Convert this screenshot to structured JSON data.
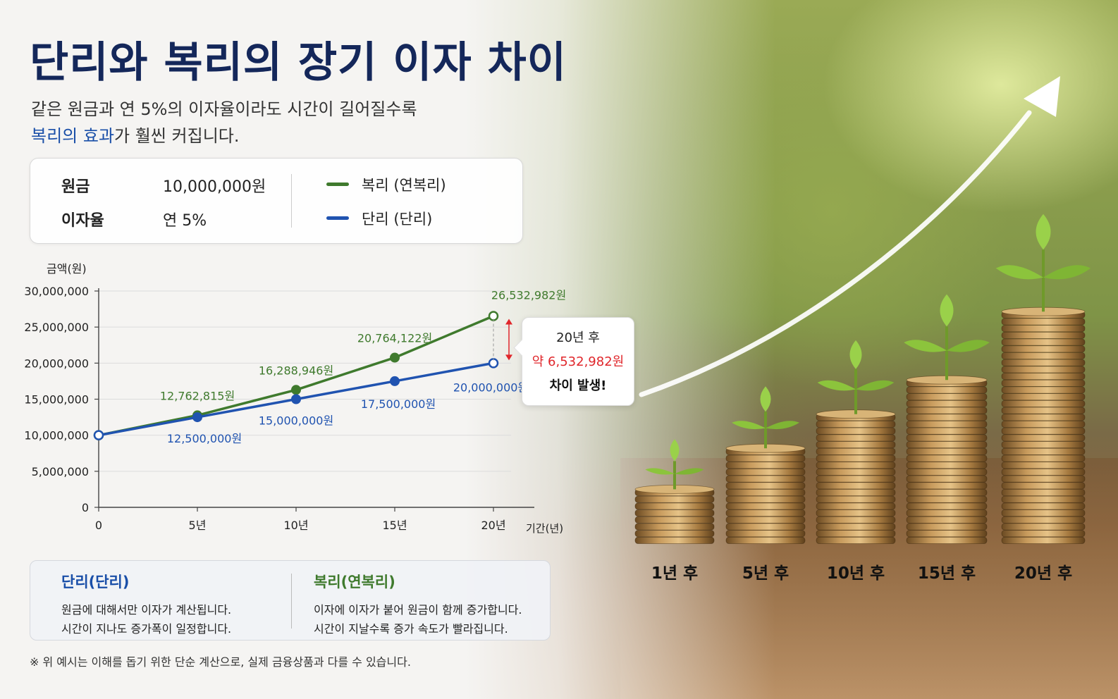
{
  "header": {
    "title": "단리와 복리의 장기 이자 차이",
    "subtitle_line1": "같은 원금과 연 5%의 이자율이라도 시간이 길어질수록",
    "subtitle_highlight": "복리의 효과",
    "subtitle_line2_rest": "가 훨씬 커집니다."
  },
  "info": {
    "principal_label": "원금",
    "principal_value": "10,000,000원",
    "rate_label": "이자율",
    "rate_value": "연 5%",
    "legend_compound": "복리 (연복리)",
    "legend_simple": "단리 (단리)"
  },
  "chart_data": {
    "type": "line",
    "ylabel": "금액(원)",
    "xlabel": "기간(년)",
    "x": [
      0,
      5,
      10,
      15,
      20
    ],
    "x_tick_labels": [
      "0",
      "5년",
      "10년",
      "15년",
      "20년"
    ],
    "y_ticks": [
      0,
      5000000,
      10000000,
      15000000,
      20000000,
      25000000,
      30000000
    ],
    "y_tick_labels": [
      "0",
      "5,000,000",
      "10,000,000",
      "15,000,000",
      "20,000,000",
      "25,000,000",
      "30,000,000"
    ],
    "ylim": [
      0,
      30000000
    ],
    "xlim": [
      0,
      20
    ],
    "grid": "horizontal",
    "series": [
      {
        "name": "복리 (연복리)",
        "color": "#3f7a2d",
        "values": [
          10000000,
          12762815,
          16288946,
          20764122,
          26532982
        ],
        "labels": [
          "",
          "12,762,815원",
          "16,288,946원",
          "20,764,122원",
          "26,532,982원"
        ]
      },
      {
        "name": "단리 (단리)",
        "color": "#2053b0",
        "values": [
          10000000,
          12500000,
          15000000,
          17500000,
          20000000
        ],
        "labels": [
          "",
          "12,500,000원",
          "15,000,000원",
          "17,500,000원",
          "20,000,000원"
        ]
      }
    ]
  },
  "callout": {
    "line1": "20년 후",
    "line2": "약 6,532,982원",
    "line3": "차이 발생!"
  },
  "explain": {
    "simple_title": "단리(단리)",
    "simple_line1": "원금에 대해서만 이자가 계산됩니다.",
    "simple_line2": "시간이 지나도 증가폭이 일정합니다.",
    "compound_title": "복리(연복리)",
    "compound_line1": "이자에 이자가 붙어 원금이 함께 증가합니다.",
    "compound_line2": "시간이 지날수록 증가 속도가 빨라집니다."
  },
  "footnote": "※ 위 예시는 이해를 돕기 위한 단순 계산으로, 실제 금융상품과 다를 수 있습니다.",
  "coin_stacks": [
    {
      "label": "1년 후",
      "coins": 8
    },
    {
      "label": "5년 후",
      "coins": 14
    },
    {
      "label": "10년 후",
      "coins": 19
    },
    {
      "label": "15년 후",
      "coins": 24
    },
    {
      "label": "20년 후",
      "coins": 34
    }
  ]
}
